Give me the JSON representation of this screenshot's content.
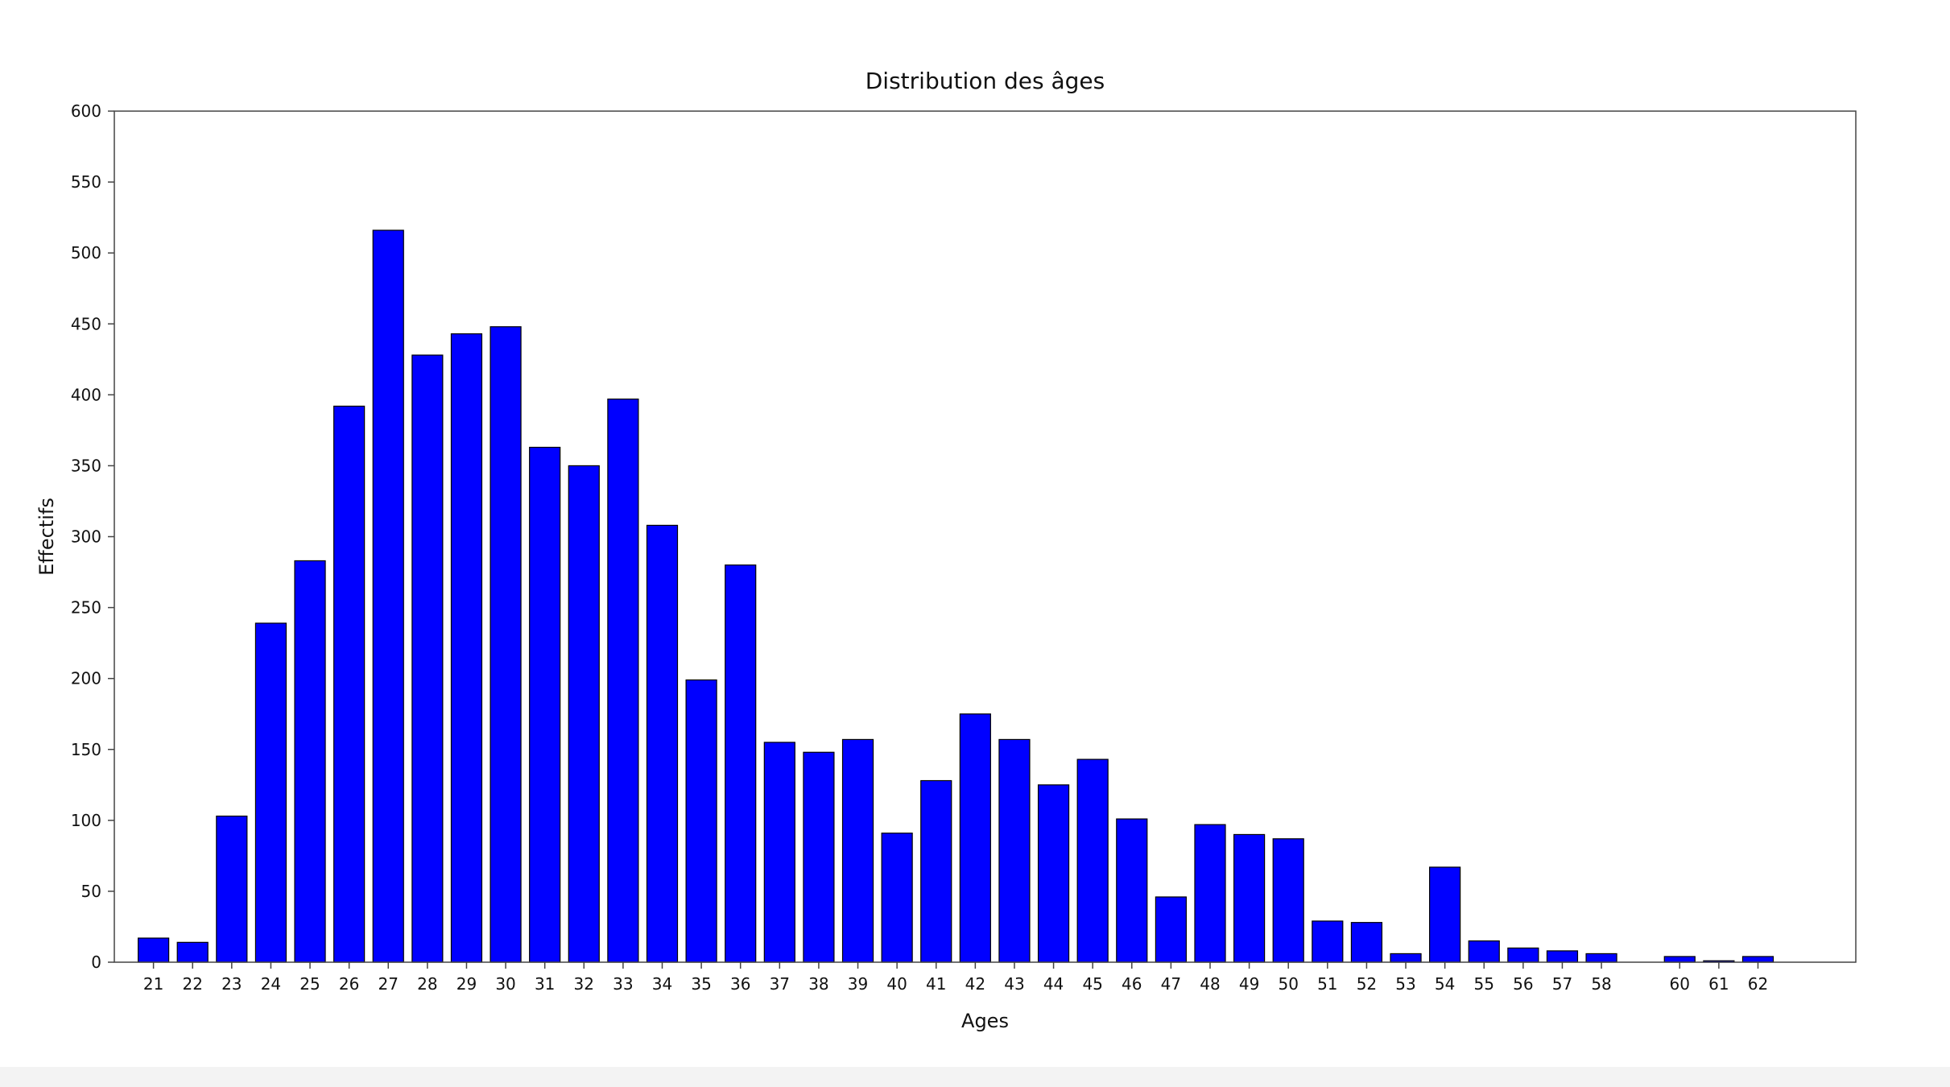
{
  "chart_data": {
    "type": "bar",
    "title": "Distribution des âges",
    "xlabel": "Ages",
    "ylabel": "Effectifs",
    "ylim": [
      0,
      600
    ],
    "yticks": [
      0,
      50,
      100,
      150,
      200,
      250,
      300,
      350,
      400,
      450,
      500,
      550,
      600
    ],
    "x_range": [
      20,
      64.5
    ],
    "grid": false,
    "bar_color": "#0000ff",
    "edge_color": "#000000",
    "categories": [
      "21",
      "22",
      "23",
      "24",
      "25",
      "26",
      "27",
      "28",
      "29",
      "30",
      "31",
      "32",
      "33",
      "34",
      "35",
      "36",
      "37",
      "38",
      "39",
      "40",
      "41",
      "42",
      "43",
      "44",
      "45",
      "46",
      "47",
      "48",
      "49",
      "50",
      "51",
      "52",
      "53",
      "54",
      "55",
      "56",
      "57",
      "58",
      "60",
      "61",
      "62"
    ],
    "x": [
      21,
      22,
      23,
      24,
      25,
      26,
      27,
      28,
      29,
      30,
      31,
      32,
      33,
      34,
      35,
      36,
      37,
      38,
      39,
      40,
      41,
      42,
      43,
      44,
      45,
      46,
      47,
      48,
      49,
      50,
      51,
      52,
      53,
      54,
      55,
      56,
      57,
      58,
      60,
      61,
      62
    ],
    "values": [
      17,
      14,
      103,
      239,
      283,
      392,
      516,
      428,
      443,
      448,
      363,
      350,
      397,
      308,
      199,
      280,
      155,
      148,
      157,
      91,
      128,
      175,
      157,
      125,
      143,
      101,
      46,
      97,
      90,
      87,
      29,
      28,
      6,
      67,
      15,
      10,
      8,
      6,
      4,
      1,
      4
    ]
  }
}
